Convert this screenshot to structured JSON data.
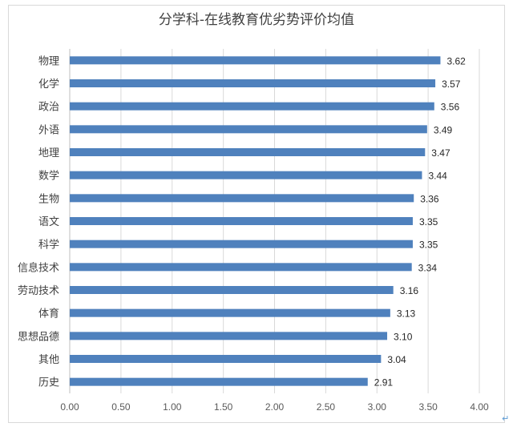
{
  "chart_data": {
    "type": "bar",
    "orientation": "horizontal",
    "title": "分学科-在线教育优劣势评价均值",
    "categories": [
      "物理",
      "化学",
      "政治",
      "外语",
      "地理",
      "数学",
      "生物",
      "语文",
      "科学",
      "信息技术",
      "劳动技术",
      "体育",
      "思想品德",
      "其他",
      "历史"
    ],
    "values": [
      3.62,
      3.57,
      3.56,
      3.49,
      3.47,
      3.44,
      3.36,
      3.35,
      3.35,
      3.34,
      3.16,
      3.13,
      3.1,
      3.04,
      2.91
    ],
    "value_labels": [
      "3.62",
      "3.57",
      "3.56",
      "3.49",
      "3.47",
      "3.44",
      "3.36",
      "3.35",
      "3.35",
      "3.34",
      "3.16",
      "3.13",
      "3.10",
      "3.04",
      "2.91"
    ],
    "xlim": [
      0,
      4
    ],
    "xticks": [
      "0.00",
      "0.50",
      "1.00",
      "1.50",
      "2.00",
      "2.50",
      "3.00",
      "3.50",
      "4.00"
    ],
    "xtick_values": [
      0,
      0.5,
      1,
      1.5,
      2,
      2.5,
      3,
      3.5,
      4
    ],
    "grid": "vertical",
    "legend": "none",
    "bar_color": "#4f81bd",
    "grid_color": "#d9d9d9"
  }
}
